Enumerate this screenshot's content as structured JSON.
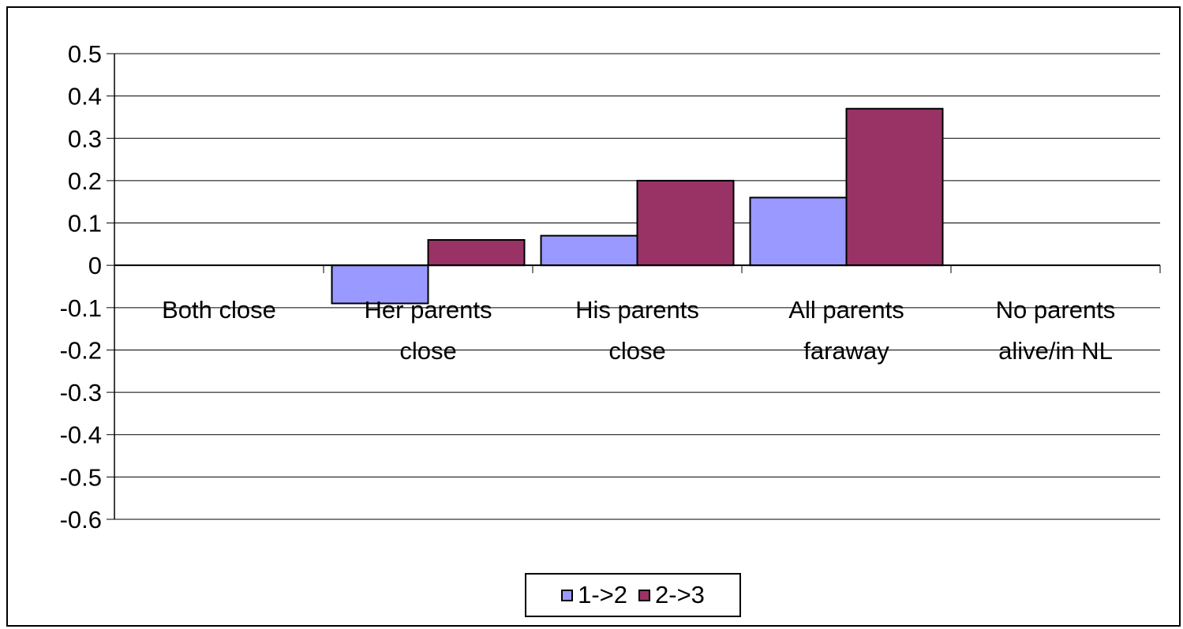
{
  "chart_data": {
    "type": "bar",
    "categories": [
      [
        "Both close"
      ],
      [
        "Her parents",
        "close"
      ],
      [
        "His parents",
        "close"
      ],
      [
        "All parents",
        "faraway"
      ],
      [
        "No parents",
        "alive/in NL"
      ]
    ],
    "series": [
      {
        "name": "1->2",
        "color": "#9999ff",
        "values": [
          null,
          -0.09,
          0.07,
          0.16,
          null
        ]
      },
      {
        "name": "2->3",
        "color": "#993366",
        "values": [
          null,
          0.06,
          0.2,
          0.37,
          null
        ]
      }
    ],
    "ylim": [
      -0.6,
      0.5
    ],
    "yticks": [
      "0.5",
      "0.4",
      "0.3",
      "0.2",
      "0.1",
      "0",
      "-0.1",
      "-0.2",
      "-0.3",
      "-0.4",
      "-0.5",
      "-0.6"
    ],
    "ytick_values": [
      0.5,
      0.4,
      0.3,
      0.2,
      0.1,
      0,
      -0.1,
      -0.2,
      -0.3,
      -0.4,
      -0.5,
      -0.6
    ],
    "grid": true,
    "legend": "bottom"
  }
}
